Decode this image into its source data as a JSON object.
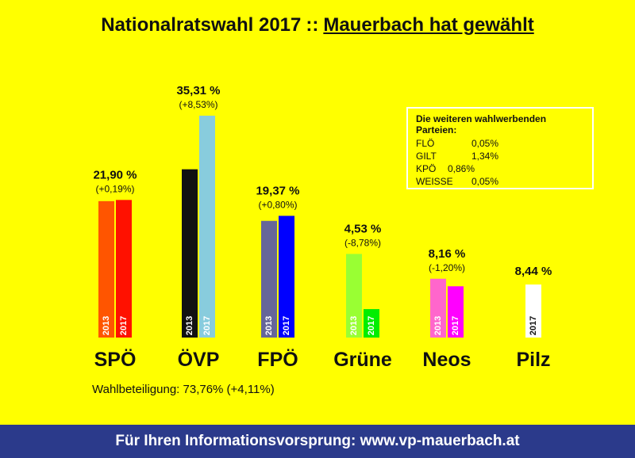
{
  "header": {
    "title": "Nationalratswahl 2017",
    "separator": "::",
    "subtitle": "Mauerbach hat gewählt"
  },
  "chart_data": {
    "type": "bar",
    "categories": [
      "SPÖ",
      "ÖVP",
      "FPÖ",
      "Grüne",
      "Neos",
      "Pilz"
    ],
    "series": [
      {
        "name": "2013",
        "values": [
          21.71,
          26.78,
          18.57,
          13.31,
          9.36,
          null
        ]
      },
      {
        "name": "2017",
        "values": [
          21.9,
          35.31,
          19.37,
          4.53,
          8.16,
          8.44
        ]
      }
    ],
    "value_labels": [
      "21,90 %",
      "35,31 %",
      "19,37 %",
      "4,53 %",
      "8,16 %",
      "8,44 %"
    ],
    "change_labels": [
      "(+0,19%)",
      "(+8,53%)",
      "(+0,80%)",
      "(-8,78%)",
      "(-1,20%)",
      ""
    ],
    "colors_2013": [
      "#ff5500",
      "#111111",
      "#666699",
      "#99ff33",
      "#ff66cc",
      null
    ],
    "colors_2017": [
      "#ff1100",
      "#88ccdd",
      "#0000ff",
      "#00ee00",
      "#ff00ff",
      "#ffffff"
    ],
    "ylim": [
      0,
      40
    ]
  },
  "others": {
    "heading": "Die weiteren wahlwerbenden Parteien:",
    "rows": [
      {
        "name": "FLÖ",
        "value": "0,05%"
      },
      {
        "name": "GILT",
        "value": "1,34%"
      },
      {
        "name": "KPÖ",
        "value": "0,86%"
      },
      {
        "name": "WEISSE",
        "value": "0,05%"
      }
    ]
  },
  "turnout": "Wahlbeteiligung: 73,76% (+4,11%)",
  "footer": "Für Ihren Informationsvorsprung: www.vp-mauerbach.at"
}
